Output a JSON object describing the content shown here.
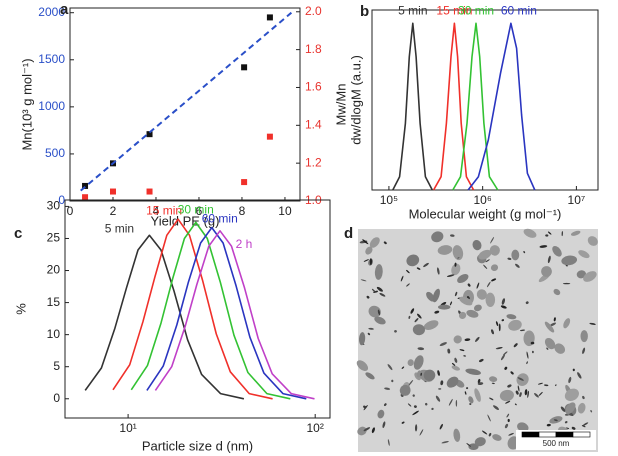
{
  "chart_data": [
    {
      "type": "scatter",
      "panel_label": "a",
      "xlabel": "Yield PE (g)",
      "ylabel": "Mn(10³ g mol⁻¹)",
      "y2label": "Mw/Mn",
      "xlim": [
        0,
        10.7
      ],
      "xticks": [
        0,
        2,
        4,
        6,
        8,
        10
      ],
      "ylim": [
        0,
        2050
      ],
      "yticks": [
        0,
        500,
        1000,
        1500,
        2000
      ],
      "ycolor": "#2a4fc8",
      "y2lim": [
        1,
        2.02
      ],
      "y2ticks": [
        {
          "value": 1,
          "label": "1.0"
        },
        1.2,
        1.4,
        1.6,
        1.8,
        {
          "value": 2,
          "label": "2.0"
        }
      ],
      "y2color": "#e8342f",
      "series": [
        {
          "color": "#111111",
          "x": [
            0.7,
            2,
            3.7,
            8.1,
            9.3
          ],
          "values": [
            160,
            400,
            710,
            1420,
            1950
          ]
        },
        {
          "color": "#f0302a",
          "axis": "y2",
          "x": [
            0.7,
            2,
            3.7,
            8.1,
            9.3
          ],
          "values": [
            1.02,
            1.05,
            1.05,
            1.1,
            1.34
          ]
        },
        {
          "color": "#2a4fc8",
          "mode": "line",
          "dash": true,
          "x": [
            0.5,
            10.3
          ],
          "values": [
            110,
            2000
          ]
        }
      ]
    },
    {
      "type": "line",
      "panel_label": "b",
      "xlabel": "Molecular weight (g mol⁻¹)",
      "ylabel": "dw/dlogM (a.u.)",
      "xlog": true,
      "xlim": [
        66000,
        17000000
      ],
      "xticks": [
        {
          "value": 100000,
          "label": "10⁵"
        },
        {
          "value": 1000000,
          "label": "10⁶"
        },
        {
          "value": 10000000,
          "label": "10⁷"
        }
      ],
      "ylim": [
        0,
        1.08
      ],
      "series": [
        {
          "name": "5 min",
          "color": "#333333",
          "x": [
            110000,
            130000,
            150000,
            165000,
            180000,
            195000,
            215000,
            245000,
            290000
          ],
          "values": [
            0,
            0.08,
            0.4,
            0.8,
            1,
            0.8,
            0.4,
            0.08,
            0
          ]
        },
        {
          "name": "15 min",
          "color": "#f0302a",
          "x": [
            300000,
            360000,
            410000,
            460000,
            500000,
            540000,
            590000,
            670000,
            800000
          ],
          "values": [
            0,
            0.08,
            0.4,
            0.8,
            1,
            0.8,
            0.4,
            0.08,
            0
          ]
        },
        {
          "name": "30 min",
          "color": "#33c233",
          "x": [
            480000,
            580000,
            680000,
            770000,
            850000,
            930000,
            1030000,
            1180000,
            1450000
          ],
          "values": [
            0,
            0.08,
            0.4,
            0.8,
            1,
            0.8,
            0.4,
            0.08,
            0
          ]
        },
        {
          "name": "60 min",
          "color": "#2a35c0",
          "x": [
            700000,
            900000,
            1150000,
            1550000,
            2000000,
            2300000,
            2600000,
            3000000,
            3600000
          ],
          "values": [
            0,
            0.08,
            0.3,
            0.7,
            1,
            0.85,
            0.45,
            0.1,
            0
          ]
        }
      ]
    },
    {
      "type": "line",
      "panel_label": "c",
      "xlabel": "Particle size d (nm)",
      "ylabel": "%",
      "xlog": true,
      "xlim": [
        4.6,
        120
      ],
      "xticks": [
        {
          "value": 10,
          "label": "10¹"
        },
        {
          "value": 100,
          "label": "10²"
        }
      ],
      "ylim": [
        -3,
        31
      ],
      "yticks": [
        0,
        5,
        10,
        15,
        20,
        25,
        30
      ],
      "series": [
        {
          "name": "5 min",
          "color": "#333333",
          "x": [
            5.9,
            7.2,
            8.5,
            9.8,
            11.3,
            13,
            15,
            17.6,
            20.8,
            24.7,
            31.2,
            41.6
          ],
          "values": [
            1.3,
            4.8,
            11,
            17.3,
            23.2,
            25.5,
            23.2,
            16.8,
            9.2,
            3.8,
            0.8,
            0
          ]
        },
        {
          "name": "15 min",
          "color": "#f0302a",
          "x": [
            8.3,
            10.2,
            12,
            13.9,
            16.1,
            18.5,
            21.3,
            25,
            29.6,
            35.2,
            44.4,
            59.2
          ],
          "values": [
            1.4,
            5.3,
            12,
            19,
            25.5,
            28,
            25.5,
            18.5,
            10.1,
            4.2,
            0.8,
            0
          ]
        },
        {
          "name": "30 min",
          "color": "#33c233",
          "x": [
            10.4,
            12.7,
            15,
            17.3,
            20,
            23,
            26.5,
            31.1,
            36.8,
            43.7,
            55.2,
            73.6
          ],
          "values": [
            1.4,
            5.2,
            11.8,
            18.7,
            25,
            27.5,
            25,
            18.2,
            9.9,
            4.1,
            0.8,
            0
          ]
        },
        {
          "name": "60 min",
          "color": "#2a35c0",
          "x": [
            12.6,
            15.4,
            18.2,
            21,
            24.4,
            28,
            32.2,
            37.8,
            44.8,
            53.2,
            67.2,
            89.6
          ],
          "values": [
            1.3,
            5.1,
            11.5,
            18.2,
            24.3,
            26.7,
            24.3,
            17.6,
            9.6,
            4,
            0.8,
            0
          ]
        },
        {
          "name": "2 h",
          "color": "#c040c8",
          "x": [
            14,
            17.1,
            20.2,
            23.3,
            27,
            31,
            35.7,
            41.9,
            49.6,
            58.9,
            74.4,
            99.2
          ],
          "values": [
            1.3,
            5,
            11.3,
            17.8,
            23.8,
            26.2,
            23.8,
            17.3,
            9.4,
            3.9,
            0.8,
            0
          ]
        }
      ]
    },
    {
      "type": "image",
      "panel_label": "d",
      "scale_bar": "500 nm"
    }
  ]
}
